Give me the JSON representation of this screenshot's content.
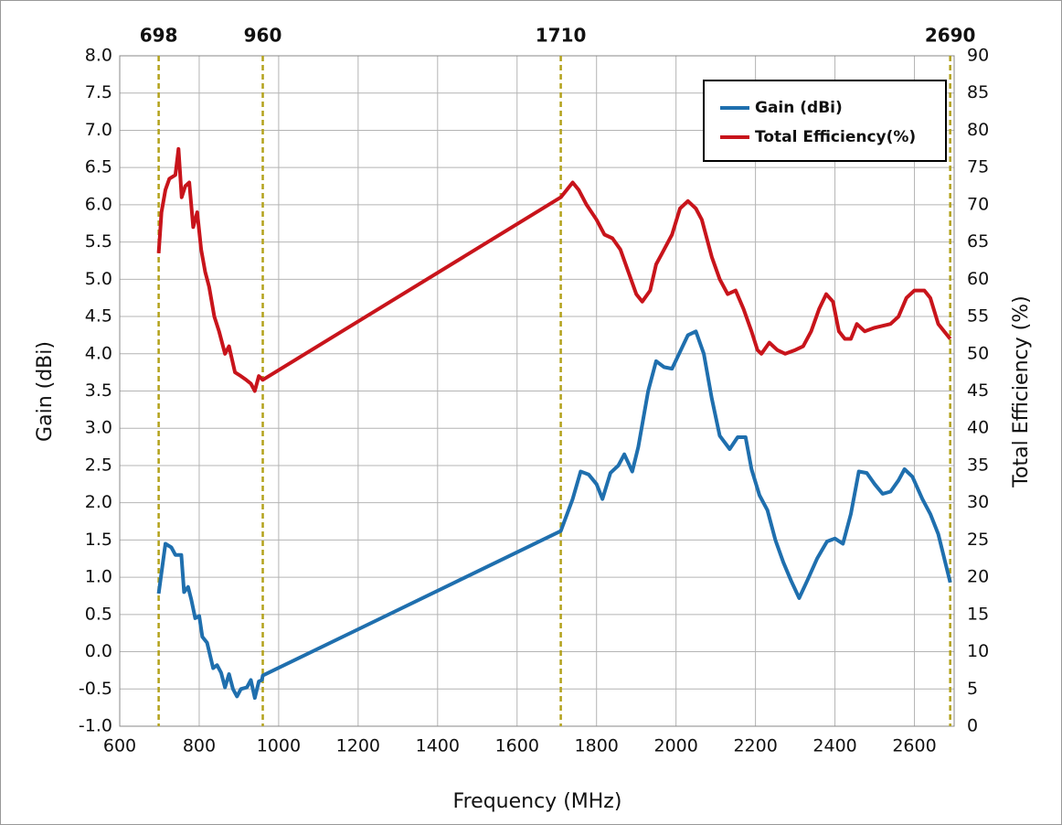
{
  "chart_data": {
    "type": "line",
    "xlabel": "Frequency (MHz)",
    "ylabel": "Gain (dBi)",
    "y2label": "Total Efficiency (%)",
    "xlim": [
      600,
      2700
    ],
    "xticks": [
      600,
      800,
      1000,
      1200,
      1400,
      1600,
      1800,
      2000,
      2200,
      2400,
      2600
    ],
    "ylim": [
      -1,
      8
    ],
    "yticks": [
      {
        "value": -1,
        "label": "-1.0"
      },
      {
        "value": -0.5,
        "label": "-0.5"
      },
      {
        "value": 0,
        "label": "0.0"
      },
      {
        "value": 0.5,
        "label": "0.5"
      },
      {
        "value": 1,
        "label": "1.0"
      },
      {
        "value": 1.5,
        "label": "1.5"
      },
      {
        "value": 2,
        "label": "2.0"
      },
      {
        "value": 2.5,
        "label": "2.5"
      },
      {
        "value": 3,
        "label": "3.0"
      },
      {
        "value": 3.5,
        "label": "3.5"
      },
      {
        "value": 4,
        "label": "4.0"
      },
      {
        "value": 4.5,
        "label": "4.5"
      },
      {
        "value": 5,
        "label": "5.0"
      },
      {
        "value": 5.5,
        "label": "5.5"
      },
      {
        "value": 6,
        "label": "6.0"
      },
      {
        "value": 6.5,
        "label": "6.5"
      },
      {
        "value": 7,
        "label": "7.0"
      },
      {
        "value": 7.5,
        "label": "7.5"
      },
      {
        "value": 8,
        "label": "8.0"
      }
    ],
    "y2lim": [
      0,
      90
    ],
    "y2ticks": [
      0,
      5,
      10,
      15,
      20,
      25,
      30,
      35,
      40,
      45,
      50,
      55,
      60,
      65,
      70,
      75,
      80,
      85,
      90
    ],
    "grid": true,
    "legend": "upper right",
    "vlines": [
      698,
      960,
      1710,
      2690
    ],
    "vline_color": "#b3a21c",
    "series": [
      {
        "name": "Gain (dBi)",
        "color": "#1f6fae",
        "x": [
          698,
          715,
          730,
          740,
          755,
          762,
          772,
          780,
          790,
          800,
          808,
          820,
          835,
          845,
          855,
          865,
          875,
          885,
          895,
          905,
          920,
          930,
          940,
          950,
          958,
          960,
          1710,
          1740,
          1760,
          1780,
          1800,
          1815,
          1835,
          1855,
          1870,
          1890,
          1905,
          1930,
          1950,
          1970,
          1990,
          2030,
          2050,
          2070,
          2090,
          2110,
          2135,
          2155,
          2175,
          2190,
          2210,
          2230,
          2250,
          2270,
          2290,
          2310,
          2330,
          2355,
          2380,
          2400,
          2420,
          2440,
          2460,
          2480,
          2500,
          2520,
          2540,
          2560,
          2575,
          2595,
          2620,
          2640,
          2660,
          2690
        ],
        "values": [
          0.78,
          1.45,
          1.4,
          1.3,
          1.3,
          0.8,
          0.87,
          0.7,
          0.45,
          0.48,
          0.2,
          0.12,
          -0.22,
          -0.18,
          -0.28,
          -0.48,
          -0.3,
          -0.5,
          -0.6,
          -0.5,
          -0.48,
          -0.38,
          -0.62,
          -0.4,
          -0.38,
          -0.32,
          1.62,
          2.05,
          2.42,
          2.38,
          2.25,
          2.05,
          2.4,
          2.5,
          2.65,
          2.42,
          2.75,
          3.5,
          3.9,
          3.82,
          3.8,
          4.25,
          4.3,
          4.0,
          3.4,
          2.9,
          2.72,
          2.88,
          2.88,
          2.45,
          2.1,
          1.9,
          1.5,
          1.2,
          0.95,
          0.72,
          0.95,
          1.25,
          1.48,
          1.52,
          1.45,
          1.85,
          2.42,
          2.4,
          2.25,
          2.12,
          2.15,
          2.3,
          2.45,
          2.35,
          2.05,
          1.85,
          1.58,
          0.93
        ]
      },
      {
        "name": "Total Efficiency(%)",
        "color": "#c8141b",
        "axis": "y2",
        "x": [
          698,
          705,
          715,
          725,
          740,
          748,
          756,
          765,
          775,
          785,
          795,
          805,
          815,
          825,
          838,
          850,
          865,
          875,
          890,
          905,
          918,
          930,
          940,
          950,
          960,
          1710,
          1725,
          1740,
          1755,
          1775,
          1800,
          1820,
          1840,
          1860,
          1880,
          1900,
          1915,
          1935,
          1950,
          1965,
          1990,
          2010,
          2030,
          2050,
          2065,
          2090,
          2110,
          2130,
          2150,
          2170,
          2190,
          2205,
          2215,
          2235,
          2255,
          2275,
          2300,
          2320,
          2340,
          2360,
          2378,
          2395,
          2410,
          2425,
          2440,
          2455,
          2475,
          2500,
          2540,
          2560,
          2580,
          2600,
          2625,
          2640,
          2660,
          2690
        ],
        "values": [
          63.5,
          69,
          72,
          73.5,
          74,
          77.5,
          71,
          72.5,
          73,
          67,
          69,
          64,
          61,
          59,
          55,
          53,
          50,
          51,
          47.5,
          47,
          46.5,
          46,
          45,
          47,
          46.5,
          71,
          72,
          73,
          72,
          70,
          68,
          66,
          65.5,
          64,
          61,
          58,
          57,
          58.5,
          62,
          63.5,
          66,
          69.5,
          70.5,
          69.5,
          68,
          63,
          60,
          58,
          58.5,
          56,
          53,
          50.5,
          50,
          51.5,
          50.5,
          50,
          50.5,
          51,
          53,
          56,
          58,
          57,
          53,
          52,
          52,
          54,
          53,
          53.5,
          54,
          55,
          57.5,
          58.5,
          58.5,
          57.5,
          54,
          52
        ]
      }
    ]
  }
}
